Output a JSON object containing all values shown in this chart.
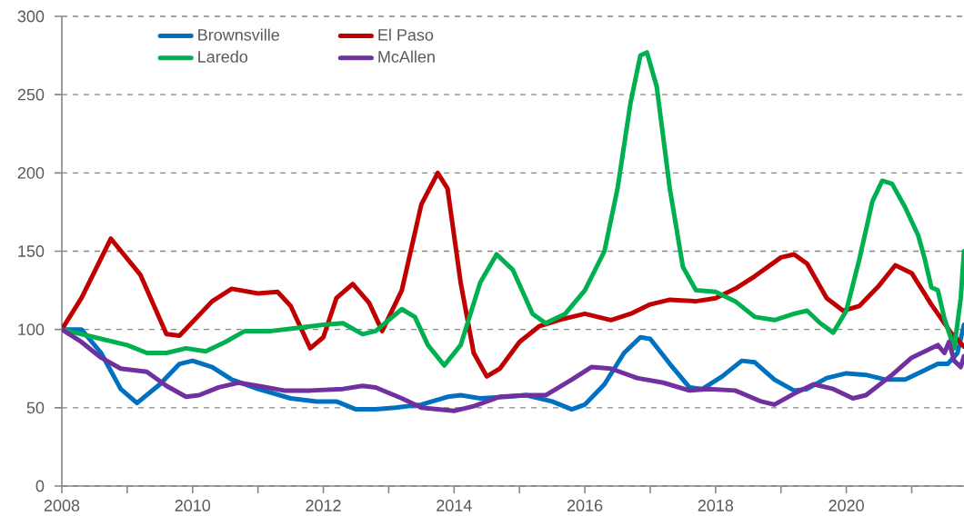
{
  "chart_data": {
    "type": "line",
    "xlim": [
      2008,
      2021.8
    ],
    "ylim": [
      0,
      300
    ],
    "xticks": [
      2008,
      {
        "value": 2009,
        "label": null
      },
      2010,
      {
        "value": 2011,
        "label": null
      },
      2012,
      {
        "value": 2013,
        "label": null
      },
      2014,
      {
        "value": 2015,
        "label": null
      },
      2016,
      {
        "value": 2017,
        "label": null
      },
      2018,
      {
        "value": 2019,
        "label": null
      },
      2020,
      {
        "value": 2021,
        "label": null
      }
    ],
    "yticks": [
      0,
      50,
      100,
      150,
      200,
      250,
      300
    ],
    "grid": "y",
    "legend": "top left",
    "line_style": "solid",
    "marker": "none",
    "series": [
      {
        "name": "Brownsville",
        "color": "#0070c0",
        "x": [
          2008,
          2008.3,
          2008.6,
          2008.9,
          2009.15,
          2009.5,
          2009.8,
          2010.0,
          2010.3,
          2010.6,
          2011.0,
          2011.5,
          2011.9,
          2012.2,
          2012.5,
          2012.8,
          2013.1,
          2013.5,
          2013.9,
          2014.1,
          2014.4,
          2014.8,
          2015.1,
          2015.5,
          2015.8,
          2016.0,
          2016.3,
          2016.6,
          2016.85,
          2017.0,
          2017.3,
          2017.6,
          2017.8,
          2018.1,
          2018.4,
          2018.6,
          2018.9,
          2019.2,
          2019.4,
          2019.7,
          2020.0,
          2020.3,
          2020.6,
          2020.9,
          2021.2,
          2021.4,
          2021.55,
          2021.7,
          2021.8
        ],
        "values": [
          100,
          100,
          85,
          62,
          53,
          65,
          78,
          80,
          76,
          68,
          62,
          56,
          54,
          54,
          49,
          49,
          50,
          52,
          57,
          58,
          56,
          57,
          58,
          54,
          49,
          52,
          65,
          85,
          95,
          94,
          78,
          63,
          62,
          70,
          80,
          79,
          68,
          61,
          62,
          69,
          72,
          71,
          68,
          68,
          74,
          78,
          78,
          85,
          103
        ]
      },
      {
        "name": "El Paso",
        "color": "#c00000",
        "x": [
          2008,
          2008.3,
          2008.75,
          2009.2,
          2009.6,
          2009.8,
          2010.3,
          2010.6,
          2011.0,
          2011.3,
          2011.5,
          2011.8,
          2012.0,
          2012.2,
          2012.45,
          2012.7,
          2012.9,
          2013.2,
          2013.5,
          2013.75,
          2013.9,
          2014.1,
          2014.3,
          2014.5,
          2014.7,
          2015.0,
          2015.3,
          2015.6,
          2016.0,
          2016.2,
          2016.4,
          2016.7,
          2017.0,
          2017.3,
          2017.7,
          2018.0,
          2018.3,
          2018.6,
          2019.0,
          2019.2,
          2019.4,
          2019.7,
          2019.95,
          2020.2,
          2020.5,
          2020.75,
          2021.0,
          2021.3,
          2021.6,
          2021.8
        ],
        "values": [
          100,
          120,
          158,
          135,
          97,
          96,
          118,
          126,
          123,
          124,
          115,
          88,
          95,
          120,
          129,
          117,
          99,
          125,
          180,
          200,
          190,
          130,
          85,
          70,
          75,
          92,
          102,
          106,
          110,
          108,
          106,
          110,
          116,
          119,
          118,
          120,
          126,
          134,
          146,
          148,
          142,
          120,
          112,
          115,
          128,
          141,
          136,
          116,
          98,
          89
        ]
      },
      {
        "name": "Laredo",
        "color": "#00b050",
        "x": [
          2008,
          2008.5,
          2009.0,
          2009.3,
          2009.6,
          2009.9,
          2010.2,
          2010.5,
          2010.8,
          2011.2,
          2011.6,
          2012.0,
          2012.3,
          2012.6,
          2012.8,
          2013.2,
          2013.4,
          2013.6,
          2013.85,
          2014.1,
          2014.4,
          2014.65,
          2014.9,
          2015.2,
          2015.4,
          2015.7,
          2016.0,
          2016.3,
          2016.5,
          2016.7,
          2016.85,
          2016.95,
          2017.1,
          2017.3,
          2017.5,
          2017.7,
          2018.0,
          2018.3,
          2018.6,
          2018.9,
          2019.2,
          2019.4,
          2019.6,
          2019.8,
          2020.0,
          2020.2,
          2020.4,
          2020.55,
          2020.7,
          2020.9,
          2021.1,
          2021.2,
          2021.3,
          2021.4,
          2021.5,
          2021.65,
          2021.75,
          2021.8
        ],
        "values": [
          100,
          95,
          90,
          85,
          85,
          88,
          86,
          92,
          99,
          99,
          101,
          103,
          104,
          97,
          99,
          113,
          108,
          90,
          77,
          90,
          130,
          148,
          138,
          110,
          104,
          110,
          125,
          150,
          190,
          245,
          275,
          277,
          255,
          190,
          140,
          125,
          124,
          118,
          108,
          106,
          110,
          112,
          104,
          98,
          112,
          145,
          182,
          195,
          193,
          178,
          160,
          145,
          127,
          125,
          107,
          88,
          120,
          150
        ]
      },
      {
        "name": "McAllen",
        "color": "#7030a0",
        "x": [
          2008,
          2008.3,
          2008.6,
          2008.9,
          2009.3,
          2009.6,
          2009.9,
          2010.1,
          2010.4,
          2010.7,
          2011.0,
          2011.4,
          2011.8,
          2012.3,
          2012.6,
          2012.8,
          2013.2,
          2013.5,
          2014.0,
          2014.3,
          2014.7,
          2015.1,
          2015.4,
          2015.8,
          2016.1,
          2016.4,
          2016.8,
          2017.2,
          2017.6,
          2017.9,
          2018.3,
          2018.7,
          2018.9,
          2019.2,
          2019.5,
          2019.8,
          2020.1,
          2020.3,
          2020.7,
          2021.0,
          2021.3,
          2021.4,
          2021.5,
          2021.57,
          2021.65,
          2021.75,
          2021.8
        ],
        "values": [
          100,
          92,
          82,
          75,
          73,
          64,
          57,
          58,
          63,
          66,
          64,
          61,
          61,
          62,
          64,
          63,
          56,
          50,
          48,
          51,
          57,
          58,
          58,
          68,
          76,
          75,
          69,
          66,
          61,
          62,
          61,
          54,
          52,
          59,
          65,
          62,
          56,
          58,
          71,
          82,
          88,
          90,
          85,
          92,
          80,
          76,
          83
        ]
      }
    ]
  }
}
